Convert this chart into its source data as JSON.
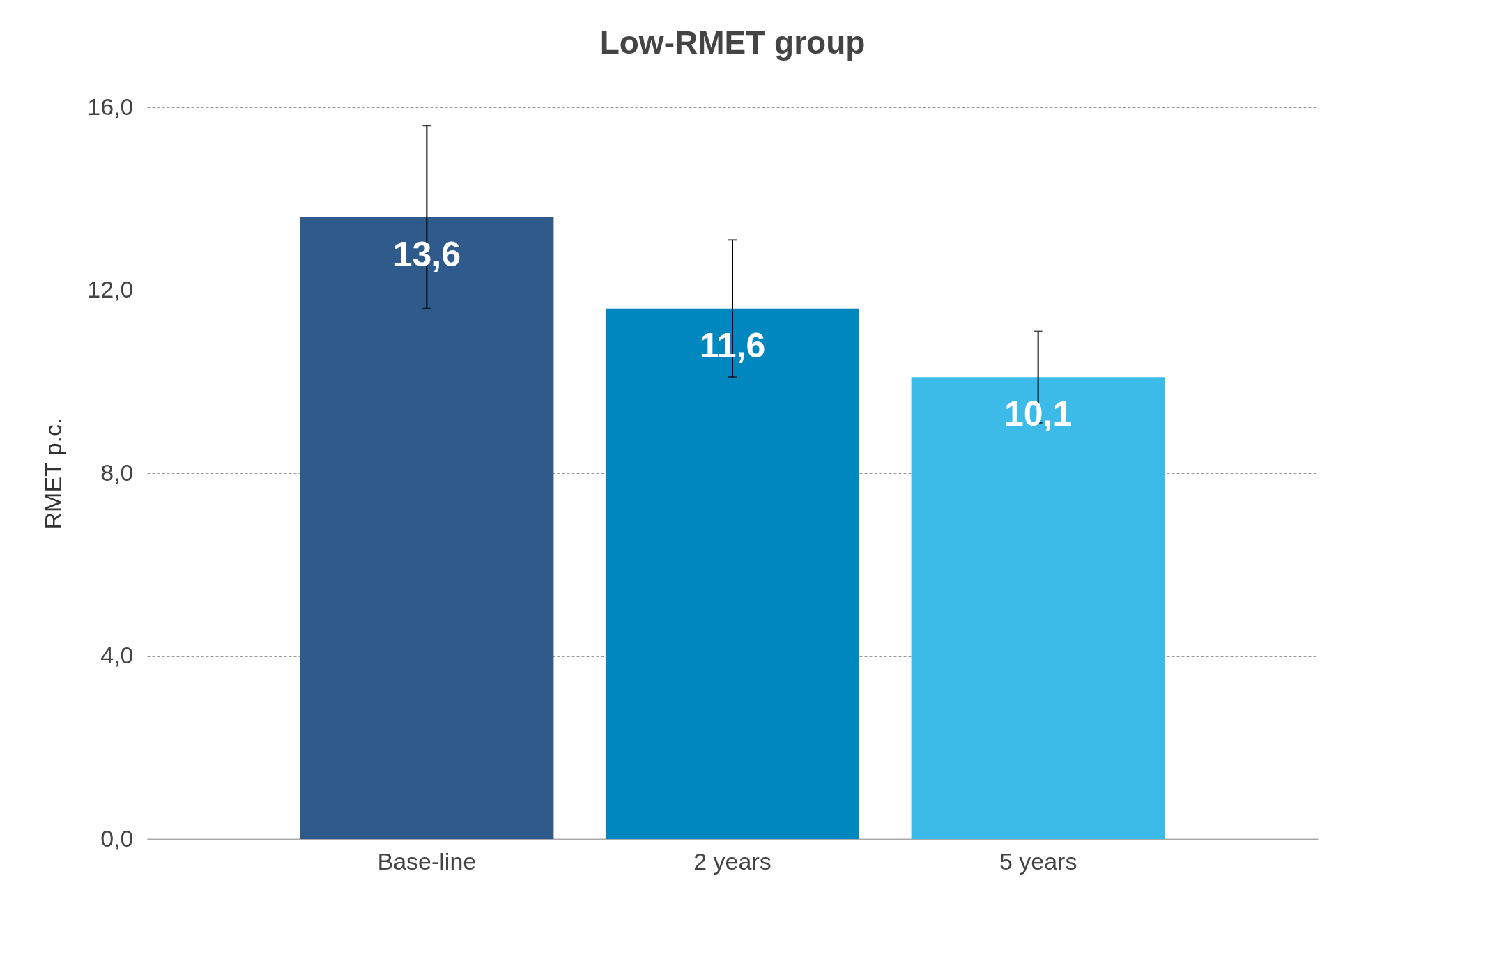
{
  "chart_data": {
    "type": "bar",
    "title": "Low-RMET group",
    "ylabel": "RMET p.c.",
    "categories": [
      "Base-line",
      "2 years",
      "5 years"
    ],
    "values": [
      13.6,
      11.6,
      10.1
    ],
    "colors": [
      "#2e5a8c",
      "#0087c0",
      "#3dbbe8"
    ],
    "errors": [
      2.0,
      1.5,
      1.0
    ],
    "value_labels": [
      "13,6",
      "11,6",
      "10,1"
    ],
    "ylim": [
      0,
      16
    ],
    "yticks": [
      {
        "value": 0,
        "label": "0,0"
      },
      {
        "value": 4,
        "label": "4,0"
      },
      {
        "value": 8,
        "label": "8,0"
      },
      {
        "value": 12,
        "label": "12,0"
      },
      {
        "value": 16,
        "label": "16,0"
      }
    ],
    "grid": "y"
  }
}
